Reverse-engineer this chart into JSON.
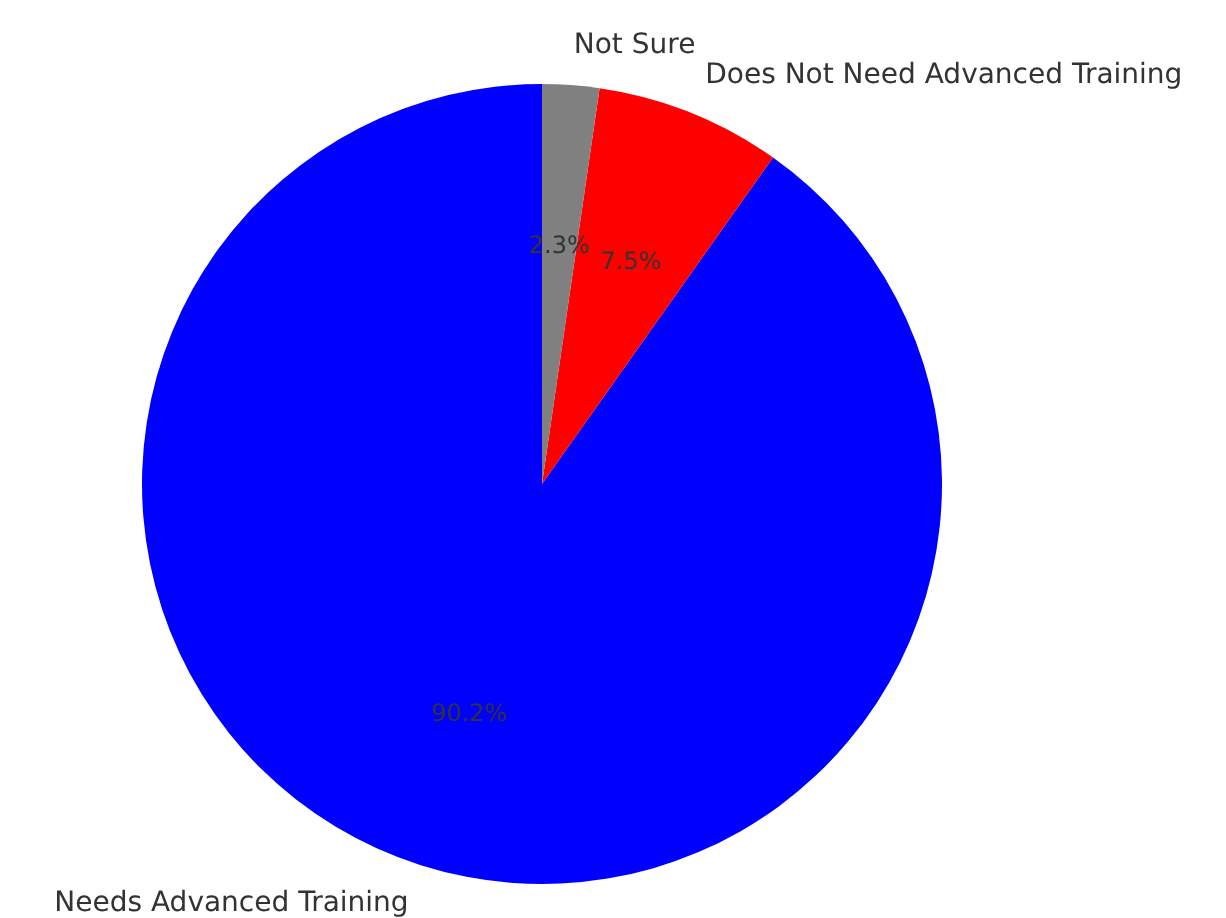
{
  "chart_data": {
    "type": "pie",
    "categories": [
      "Needs Advanced Training",
      "Does Not Need Advanced Training",
      "Not Sure"
    ],
    "values": [
      90.2,
      7.5,
      2.3
    ],
    "colors": [
      "#0000ff",
      "#ff0000",
      "#808080"
    ],
    "value_labels": [
      "90.2%",
      "7.5%",
      "2.3%"
    ]
  }
}
